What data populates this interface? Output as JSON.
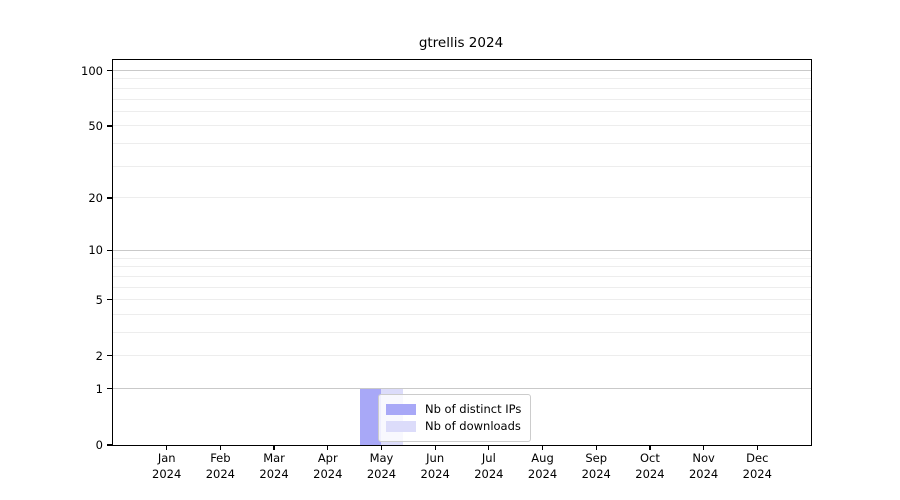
{
  "chart_data": {
    "type": "bar",
    "title": "gtrellis 2024",
    "xlabel": "",
    "ylabel": "",
    "categories": [
      "Jan",
      "Feb",
      "Mar",
      "Apr",
      "May",
      "Jun",
      "Jul",
      "Aug",
      "Sep",
      "Oct",
      "Nov",
      "Dec"
    ],
    "category_year": "2024",
    "series": [
      {
        "name": "Nb of distinct IPs",
        "color": "#a8a8f7",
        "values": [
          0,
          0,
          0,
          0,
          1,
          0,
          0,
          0,
          0,
          0,
          0,
          0
        ]
      },
      {
        "name": "Nb of downloads",
        "color": "#dcdcfa",
        "values": [
          0,
          0,
          0,
          0,
          1,
          0,
          0,
          0,
          0,
          0,
          0,
          0
        ]
      }
    ],
    "y_scale": "log1p",
    "ylim": [
      0,
      114
    ],
    "y_ticks": [
      0,
      1,
      2,
      5,
      10,
      20,
      50,
      100
    ],
    "major_gridlines": [
      1,
      10,
      100
    ],
    "minor_gridlines": [
      2,
      3,
      4,
      5,
      6,
      7,
      8,
      9,
      20,
      30,
      40,
      50,
      60,
      70,
      80,
      90
    ],
    "grid": true,
    "legend": {
      "position": "inside-bottom-center",
      "entries": [
        "Nb of distinct IPs",
        "Nb of downloads"
      ]
    },
    "colors": {
      "bar_distinct_ips": "#a8a8f7",
      "bar_downloads": "#dcdcfa",
      "grid_major": "#c9c9c9",
      "grid_minor": "#ededed",
      "spine": "#000000"
    }
  }
}
